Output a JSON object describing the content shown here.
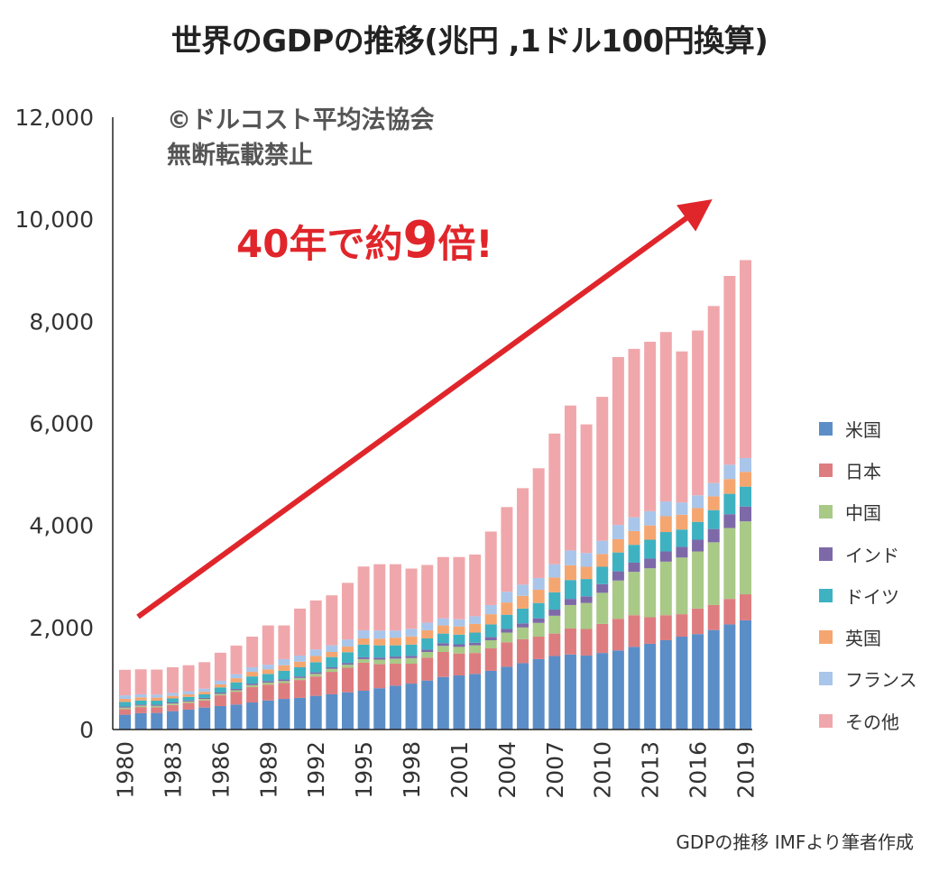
{
  "title": "世界のGDPの推移(兆円 ,1ドル100円換算)",
  "watermark": [
    "©ドルコスト平均法協会",
    "無断転載禁止"
  ],
  "annotation": {
    "before": "40年で約",
    "big": "9",
    "after": "倍!"
  },
  "source": "GDPの推移 IMFより筆者作成",
  "chart_data": {
    "type": "bar",
    "stacked": true,
    "ylim": [
      0,
      12000
    ],
    "yticks": [
      0,
      2000,
      4000,
      6000,
      8000,
      10000,
      12000
    ],
    "ytick_labels": [
      "0",
      "2,000",
      "4,000",
      "6,000",
      "8,000",
      "10,000",
      "12,000"
    ],
    "x": [
      1980,
      1981,
      1982,
      1983,
      1984,
      1985,
      1986,
      1987,
      1988,
      1989,
      1990,
      1991,
      1992,
      1993,
      1994,
      1995,
      1996,
      1997,
      1998,
      1999,
      2000,
      2001,
      2002,
      2003,
      2004,
      2005,
      2006,
      2007,
      2008,
      2009,
      2010,
      2011,
      2012,
      2013,
      2014,
      2015,
      2016,
      2017,
      2018,
      2019
    ],
    "xtick_labels": [
      "1980",
      "1983",
      "1986",
      "1989",
      "1992",
      "1995",
      "1998",
      "2001",
      "2004",
      "2007",
      "2010",
      "2013",
      "2016",
      "2019"
    ],
    "legend_position": "right",
    "series": [
      {
        "name": "米国",
        "color": "#5b8ec7",
        "values": [
          290,
          320,
          325,
          360,
          390,
          430,
          460,
          490,
          530,
          570,
          600,
          620,
          660,
          690,
          730,
          760,
          810,
          860,
          900,
          960,
          1030,
          1060,
          1090,
          1150,
          1230,
          1300,
          1380,
          1440,
          1470,
          1450,
          1500,
          1550,
          1620,
          1680,
          1750,
          1820,
          1870,
          1950,
          2060,
          2140
        ]
      },
      {
        "name": "日本",
        "color": "#de7d80",
        "values": [
          110,
          120,
          110,
          120,
          130,
          140,
          210,
          250,
          300,
          310,
          310,
          350,
          380,
          440,
          480,
          550,
          470,
          430,
          390,
          450,
          490,
          430,
          410,
          440,
          480,
          470,
          440,
          440,
          510,
          520,
          570,
          620,
          620,
          520,
          490,
          440,
          500,
          490,
          500,
          510
        ]
      },
      {
        "name": "中国",
        "color": "#a9c987",
        "values": [
          30,
          30,
          30,
          30,
          30,
          30,
          30,
          30,
          40,
          40,
          40,
          40,
          50,
          60,
          60,
          70,
          90,
          100,
          110,
          110,
          120,
          130,
          150,
          160,
          190,
          230,
          270,
          350,
          460,
          510,
          610,
          750,
          850,
          960,
          1050,
          1110,
          1120,
          1230,
          1390,
          1430
        ]
      },
      {
        "name": "インド",
        "color": "#7e69a8",
        "values": [
          20,
          20,
          20,
          20,
          20,
          20,
          25,
          25,
          30,
          30,
          30,
          30,
          30,
          30,
          35,
          35,
          40,
          40,
          45,
          45,
          50,
          50,
          50,
          60,
          70,
          80,
          90,
          120,
          120,
          130,
          170,
          180,
          180,
          190,
          200,
          210,
          230,
          260,
          270,
          290
        ]
      },
      {
        "name": "ドイツ",
        "color": "#3fb2c2",
        "values": [
          90,
          80,
          80,
          80,
          70,
          70,
          100,
          130,
          140,
          140,
          170,
          180,
          200,
          200,
          210,
          250,
          240,
          220,
          220,
          220,
          190,
          190,
          200,
          250,
          280,
          290,
          300,
          340,
          370,
          340,
          340,
          370,
          350,
          370,
          380,
          340,
          350,
          370,
          400,
          390
        ]
      },
      {
        "name": "英国",
        "color": "#f5a670",
        "values": [
          60,
          60,
          60,
          50,
          50,
          50,
          60,
          80,
          90,
          90,
          110,
          110,
          120,
          100,
          110,
          120,
          130,
          150,
          160,
          160,
          160,
          160,
          170,
          200,
          240,
          250,
          260,
          290,
          290,
          240,
          250,
          260,
          270,
          280,
          310,
          290,
          270,
          270,
          290,
          290
        ]
      },
      {
        "name": "フランス",
        "color": "#a9c5ea",
        "values": [
          70,
          60,
          60,
          60,
          60,
          60,
          70,
          80,
          90,
          90,
          120,
          120,
          130,
          130,
          140,
          160,
          160,
          140,
          150,
          150,
          140,
          140,
          150,
          180,
          210,
          220,
          230,
          260,
          290,
          270,
          260,
          280,
          270,
          280,
          290,
          240,
          250,
          260,
          280,
          270
        ]
      },
      {
        "name": "その他",
        "color": "#f0a7ab",
        "values": [
          500,
          490,
          490,
          500,
          510,
          520,
          550,
          560,
          600,
          770,
          660,
          920,
          960,
          980,
          1110,
          1250,
          1300,
          1300,
          1180,
          1130,
          1200,
          1220,
          1210,
          1440,
          1660,
          1890,
          2150,
          2560,
          2840,
          2520,
          2820,
          3290,
          3300,
          3320,
          3320,
          2960,
          3230,
          3470,
          3700,
          3880
        ]
      }
    ]
  }
}
